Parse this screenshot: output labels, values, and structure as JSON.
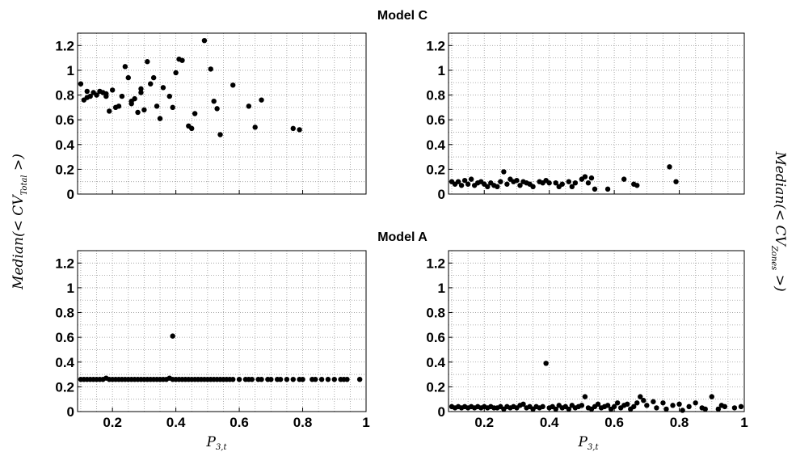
{
  "figure": {
    "titles": [
      "Model C",
      "Model A"
    ],
    "ylabel_left": "Median(< CV",
    "ylabel_left_sub": "Total",
    "ylabel_right": "Median(< CV",
    "ylabel_right_sub": "Zones",
    "ylabel_close": " >)",
    "xlabel": "P",
    "xlabel_sub": "3,t"
  },
  "chart_data": [
    {
      "type": "scatter",
      "panel": "top-left",
      "title": "Model C",
      "xlim": [
        0.09,
        1.0
      ],
      "ylim": [
        0,
        1.3
      ],
      "x_ticks": [
        0.2,
        0.4,
        0.6,
        0.8,
        1
      ],
      "x_tick_labels": [
        "",
        "",
        "",
        "",
        ""
      ],
      "y_ticks": [
        0,
        0.2,
        0.4,
        0.6,
        0.8,
        1,
        1.2
      ],
      "y_tick_labels": [
        "0",
        "0.2",
        "0.4",
        "0.6",
        "0.8",
        "1",
        "1.2"
      ],
      "grid": true,
      "x": [
        0.1,
        0.11,
        0.12,
        0.13,
        0.14,
        0.15,
        0.16,
        0.17,
        0.18,
        0.19,
        0.2,
        0.21,
        0.23,
        0.24,
        0.25,
        0.26,
        0.27,
        0.28,
        0.29,
        0.3,
        0.31,
        0.32,
        0.33,
        0.34,
        0.35,
        0.38,
        0.39,
        0.4,
        0.41,
        0.42,
        0.44,
        0.45,
        0.46,
        0.49,
        0.51,
        0.52,
        0.53,
        0.54,
        0.58,
        0.63,
        0.65,
        0.67,
        0.77,
        0.79,
        0.12,
        0.15,
        0.18,
        0.22,
        0.26,
        0.29,
        0.36
      ],
      "y": [
        0.89,
        0.76,
        0.83,
        0.79,
        0.82,
        0.8,
        0.83,
        0.82,
        0.79,
        0.67,
        0.84,
        0.7,
        0.79,
        1.03,
        0.94,
        0.73,
        0.77,
        0.66,
        0.85,
        0.68,
        1.07,
        0.89,
        0.94,
        0.71,
        0.61,
        0.79,
        0.7,
        0.98,
        1.09,
        1.08,
        0.55,
        0.53,
        0.65,
        1.24,
        1.01,
        0.75,
        0.69,
        0.48,
        0.88,
        0.71,
        0.54,
        0.76,
        0.53,
        0.52,
        0.78,
        0.8,
        0.81,
        0.71,
        0.75,
        0.82,
        0.86
      ]
    },
    {
      "type": "scatter",
      "panel": "top-right",
      "title": "",
      "xlim": [
        0.09,
        1.0
      ],
      "ylim": [
        0,
        1.3
      ],
      "x_ticks": [
        0.2,
        0.4,
        0.6,
        0.8,
        1
      ],
      "x_tick_labels": [
        "",
        "",
        "",
        "",
        ""
      ],
      "y_ticks": [
        0,
        0.2,
        0.4,
        0.6,
        0.8,
        1,
        1.2
      ],
      "y_tick_labels": [
        "0",
        "0.2",
        "0.4",
        "0.6",
        "0.8",
        "1",
        "1.2"
      ],
      "grid": true,
      "x": [
        0.1,
        0.11,
        0.12,
        0.13,
        0.14,
        0.15,
        0.16,
        0.17,
        0.18,
        0.19,
        0.2,
        0.21,
        0.22,
        0.23,
        0.24,
        0.25,
        0.26,
        0.27,
        0.28,
        0.29,
        0.3,
        0.31,
        0.32,
        0.33,
        0.34,
        0.35,
        0.37,
        0.38,
        0.39,
        0.4,
        0.42,
        0.43,
        0.44,
        0.46,
        0.47,
        0.48,
        0.5,
        0.51,
        0.52,
        0.53,
        0.54,
        0.58,
        0.63,
        0.66,
        0.67,
        0.77,
        0.79
      ],
      "y": [
        0.1,
        0.08,
        0.1,
        0.07,
        0.11,
        0.08,
        0.12,
        0.07,
        0.09,
        0.1,
        0.08,
        0.06,
        0.09,
        0.07,
        0.06,
        0.1,
        0.18,
        0.08,
        0.12,
        0.1,
        0.11,
        0.07,
        0.1,
        0.09,
        0.08,
        0.06,
        0.1,
        0.09,
        0.11,
        0.09,
        0.09,
        0.06,
        0.08,
        0.1,
        0.06,
        0.09,
        0.12,
        0.14,
        0.09,
        0.13,
        0.04,
        0.04,
        0.12,
        0.08,
        0.07,
        0.22,
        0.1
      ]
    },
    {
      "type": "scatter",
      "panel": "bottom-left",
      "title": "Model A",
      "xlim": [
        0.09,
        1.0
      ],
      "ylim": [
        0,
        1.3
      ],
      "x_ticks": [
        0.2,
        0.4,
        0.6,
        0.8,
        1
      ],
      "x_tick_labels": [
        "0.2",
        "0.4",
        "0.6",
        "0.8",
        "1"
      ],
      "y_ticks": [
        0,
        0.2,
        0.4,
        0.6,
        0.8,
        1,
        1.2
      ],
      "y_tick_labels": [
        "0",
        "0.2",
        "0.4",
        "0.6",
        "0.8",
        "1",
        "1.2"
      ],
      "grid": true,
      "x": [
        0.1,
        0.11,
        0.12,
        0.13,
        0.14,
        0.15,
        0.16,
        0.17,
        0.18,
        0.19,
        0.2,
        0.21,
        0.22,
        0.23,
        0.24,
        0.25,
        0.26,
        0.27,
        0.28,
        0.29,
        0.3,
        0.31,
        0.32,
        0.33,
        0.34,
        0.35,
        0.36,
        0.37,
        0.38,
        0.39,
        0.4,
        0.41,
        0.42,
        0.43,
        0.44,
        0.45,
        0.46,
        0.47,
        0.48,
        0.49,
        0.5,
        0.51,
        0.52,
        0.53,
        0.54,
        0.55,
        0.56,
        0.57,
        0.58,
        0.6,
        0.62,
        0.63,
        0.64,
        0.66,
        0.67,
        0.69,
        0.7,
        0.72,
        0.73,
        0.75,
        0.77,
        0.79,
        0.8,
        0.83,
        0.84,
        0.86,
        0.88,
        0.9,
        0.92,
        0.93,
        0.94,
        0.98,
        0.39
      ],
      "y": [
        0.26,
        0.26,
        0.26,
        0.26,
        0.26,
        0.26,
        0.26,
        0.26,
        0.27,
        0.26,
        0.26,
        0.26,
        0.26,
        0.26,
        0.26,
        0.26,
        0.26,
        0.26,
        0.26,
        0.26,
        0.26,
        0.26,
        0.26,
        0.26,
        0.26,
        0.26,
        0.26,
        0.26,
        0.27,
        0.26,
        0.26,
        0.26,
        0.26,
        0.26,
        0.26,
        0.26,
        0.26,
        0.26,
        0.26,
        0.26,
        0.26,
        0.26,
        0.26,
        0.26,
        0.26,
        0.26,
        0.26,
        0.26,
        0.26,
        0.26,
        0.26,
        0.26,
        0.26,
        0.26,
        0.26,
        0.26,
        0.26,
        0.26,
        0.26,
        0.26,
        0.26,
        0.26,
        0.26,
        0.26,
        0.26,
        0.26,
        0.26,
        0.26,
        0.26,
        0.26,
        0.26,
        0.26,
        0.61
      ]
    },
    {
      "type": "scatter",
      "panel": "bottom-right",
      "title": "",
      "xlim": [
        0.09,
        1.0
      ],
      "ylim": [
        0,
        1.3
      ],
      "x_ticks": [
        0.2,
        0.4,
        0.6,
        0.8,
        1
      ],
      "x_tick_labels": [
        "0.2",
        "0.4",
        "0.6",
        "0.8",
        "1"
      ],
      "y_ticks": [
        0,
        0.2,
        0.4,
        0.6,
        0.8,
        1,
        1.2
      ],
      "y_tick_labels": [
        "0",
        "0.2",
        "0.4",
        "0.6",
        "0.8",
        "1",
        "1.2"
      ],
      "grid": true,
      "x": [
        0.1,
        0.11,
        0.12,
        0.13,
        0.14,
        0.15,
        0.16,
        0.17,
        0.18,
        0.19,
        0.2,
        0.21,
        0.22,
        0.23,
        0.24,
        0.25,
        0.26,
        0.27,
        0.28,
        0.29,
        0.3,
        0.31,
        0.32,
        0.33,
        0.34,
        0.35,
        0.36,
        0.37,
        0.38,
        0.39,
        0.4,
        0.41,
        0.42,
        0.43,
        0.44,
        0.45,
        0.46,
        0.47,
        0.48,
        0.49,
        0.5,
        0.51,
        0.52,
        0.53,
        0.54,
        0.55,
        0.56,
        0.57,
        0.58,
        0.59,
        0.6,
        0.61,
        0.62,
        0.63,
        0.64,
        0.65,
        0.66,
        0.67,
        0.68,
        0.69,
        0.7,
        0.72,
        0.73,
        0.75,
        0.76,
        0.78,
        0.8,
        0.81,
        0.83,
        0.85,
        0.87,
        0.88,
        0.9,
        0.92,
        0.93,
        0.94,
        0.97,
        0.99
      ],
      "y": [
        0.04,
        0.03,
        0.04,
        0.03,
        0.04,
        0.03,
        0.04,
        0.03,
        0.04,
        0.03,
        0.04,
        0.03,
        0.04,
        0.03,
        0.03,
        0.04,
        0.02,
        0.04,
        0.03,
        0.04,
        0.03,
        0.05,
        0.06,
        0.03,
        0.04,
        0.02,
        0.04,
        0.03,
        0.04,
        0.39,
        0.03,
        0.04,
        0.02,
        0.05,
        0.03,
        0.04,
        0.02,
        0.05,
        0.03,
        0.04,
        0.05,
        0.12,
        0.03,
        0.02,
        0.04,
        0.06,
        0.03,
        0.04,
        0.05,
        0.02,
        0.04,
        0.07,
        0.03,
        0.05,
        0.06,
        0.02,
        0.04,
        0.07,
        0.12,
        0.09,
        0.05,
        0.08,
        0.03,
        0.07,
        0.02,
        0.05,
        0.06,
        0.01,
        0.04,
        0.07,
        0.03,
        0.02,
        0.12,
        0.02,
        0.05,
        0.04,
        0.03,
        0.04
      ]
    }
  ]
}
